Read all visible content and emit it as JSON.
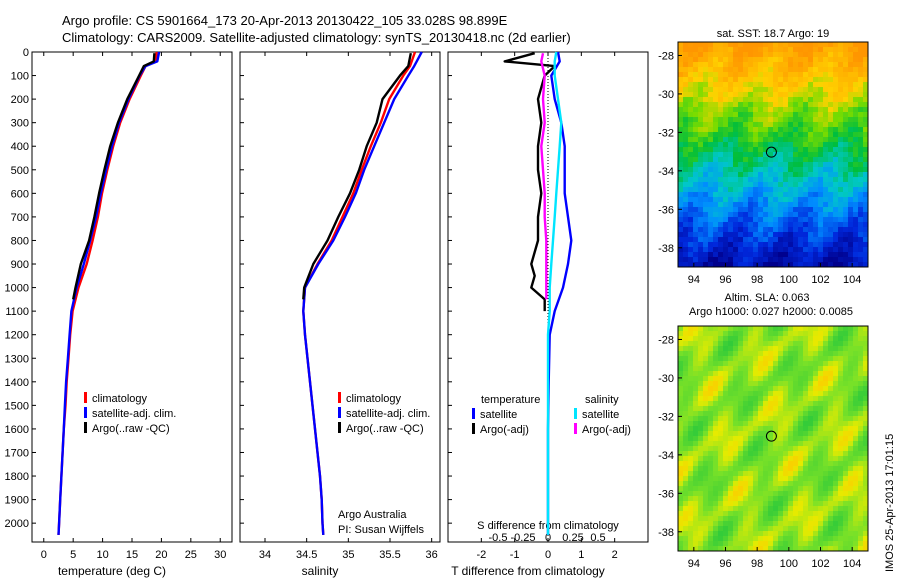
{
  "header": {
    "line1": "Argo profile: CS 5901664_173 20-Apr-2013 20130422_105 33.028S 98.899E",
    "line2": "Climatology: CARS2009. Satellite-adjusted climatology: synTS_20130418.nc (2d earlier)"
  },
  "side_label": "IMOS 25-Apr-2013 17:01:15",
  "chart_data": [
    {
      "type": "line",
      "id": "temperature",
      "xlabel": "temperature (deg C)",
      "ylabel": "",
      "xlim": [
        -2,
        32
      ],
      "ylim": [
        2080,
        0
      ],
      "xticks": [
        0,
        5,
        10,
        15,
        20,
        25,
        30
      ],
      "yticks": [
        0,
        100,
        200,
        300,
        400,
        500,
        600,
        700,
        800,
        900,
        1000,
        1100,
        1200,
        1300,
        1400,
        1500,
        1600,
        1700,
        1800,
        1900,
        2000
      ],
      "grid": false,
      "legend": {
        "position": "lower-center",
        "entries": [
          {
            "label": "climatology",
            "color": "#ff0000"
          },
          {
            "label": "satellite-adj. clim.",
            "color": "#0000ff"
          },
          {
            "label": "Argo(..raw -QC)",
            "color": "#000000"
          }
        ]
      },
      "series": [
        {
          "name": "climatology",
          "color": "#ff0000",
          "depth": [
            0,
            40,
            60,
            100,
            200,
            300,
            400,
            500,
            600,
            700,
            800,
            900,
            1000,
            1100,
            1200,
            1300,
            1400,
            1500,
            1600,
            1700,
            1800,
            1900,
            2000,
            2050
          ],
          "values": [
            19.2,
            19.0,
            17.3,
            16.5,
            14.6,
            13.0,
            11.8,
            10.8,
            9.9,
            9.2,
            8.3,
            7.3,
            5.9,
            4.9,
            4.5,
            4.2,
            3.9,
            3.7,
            3.4,
            3.2,
            3.0,
            2.8,
            2.6,
            2.5
          ]
        },
        {
          "name": "satellite-adj. clim.",
          "color": "#0000ff",
          "depth": [
            0,
            40,
            60,
            100,
            200,
            300,
            400,
            500,
            600,
            700,
            800,
            900,
            1000,
            1100,
            1200,
            1300,
            1400,
            1500,
            1600,
            1700,
            1800,
            1900,
            2000,
            2050
          ],
          "values": [
            19.6,
            19.3,
            17.3,
            16.3,
            14.4,
            12.8,
            11.6,
            10.6,
            9.7,
            8.9,
            7.9,
            6.8,
            5.6,
            4.7,
            4.4,
            4.1,
            3.8,
            3.6,
            3.4,
            3.2,
            3.0,
            2.8,
            2.6,
            2.5
          ]
        },
        {
          "name": "Argo(..raw -QC)",
          "color": "#000000",
          "depth": [
            5,
            40,
            60,
            100,
            200,
            300,
            400,
            500,
            600,
            700,
            800,
            900,
            1000,
            1050
          ],
          "values": [
            18.8,
            18.7,
            17.0,
            16.2,
            14.2,
            12.6,
            11.3,
            10.3,
            9.4,
            8.6,
            7.7,
            6.3,
            5.4,
            5.0
          ]
        }
      ]
    },
    {
      "type": "line",
      "id": "salinity",
      "xlabel": "salinity",
      "ylabel": "",
      "xlim": [
        33.7,
        36.1
      ],
      "ylim": [
        2080,
        0
      ],
      "xticks": [
        34,
        34.5,
        35,
        35.5,
        36
      ],
      "yticks": [],
      "grid": false,
      "legend": {
        "position": "lower-right",
        "entries": [
          {
            "label": "climatology",
            "color": "#ff0000"
          },
          {
            "label": "satellite-adj. clim.",
            "color": "#0000ff"
          },
          {
            "label": "Argo(..raw -QC)",
            "color": "#000000"
          }
        ]
      },
      "annotations": [
        "Argo Australia",
        "PI: Susan Wijffels"
      ],
      "series": [
        {
          "name": "climatology",
          "color": "#ff0000",
          "depth": [
            0,
            40,
            60,
            100,
            200,
            300,
            400,
            500,
            600,
            700,
            800,
            900,
            1000,
            1100,
            1200,
            1300,
            1400,
            1500,
            1600,
            1700,
            1800,
            1900,
            2000,
            2050
          ],
          "values": [
            35.8,
            35.76,
            35.74,
            35.66,
            35.49,
            35.39,
            35.27,
            35.16,
            35.06,
            34.93,
            34.8,
            34.63,
            34.48,
            34.46,
            34.48,
            34.51,
            34.54,
            34.57,
            34.6,
            34.63,
            34.66,
            34.68,
            34.69,
            34.7
          ]
        },
        {
          "name": "satellite-adj. clim.",
          "color": "#0000ff",
          "depth": [
            0,
            40,
            60,
            100,
            200,
            300,
            400,
            500,
            600,
            700,
            800,
            900,
            1000,
            1100,
            1200,
            1300,
            1400,
            1500,
            1600,
            1700,
            1800,
            1900,
            2000,
            2050
          ],
          "values": [
            35.88,
            35.82,
            35.79,
            35.72,
            35.55,
            35.43,
            35.31,
            35.19,
            35.09,
            34.96,
            34.82,
            34.64,
            34.48,
            34.46,
            34.48,
            34.51,
            34.54,
            34.57,
            34.6,
            34.63,
            34.66,
            34.68,
            34.69,
            34.7
          ]
        },
        {
          "name": "Argo(..raw -QC)",
          "color": "#000000",
          "depth": [
            5,
            40,
            60,
            100,
            200,
            300,
            400,
            500,
            600,
            700,
            800,
            900,
            1000,
            1050
          ],
          "values": [
            35.75,
            35.73,
            35.72,
            35.62,
            35.41,
            35.34,
            35.22,
            35.13,
            35.02,
            34.88,
            34.75,
            34.58,
            34.47,
            34.46
          ]
        }
      ]
    },
    {
      "type": "line",
      "id": "differences",
      "xlabel": "T difference from climatology",
      "xlabel_top": "S difference from climatology",
      "xlim": [
        -3,
        3
      ],
      "ylim": [
        2080,
        0
      ],
      "xticks": [
        -2,
        -1,
        0,
        1,
        2
      ],
      "xticks_top": [
        {
          "pos": -1.5,
          "label": "-0.5"
        },
        {
          "pos": -0.75,
          "label": "-0.25"
        },
        {
          "pos": 0,
          "label": "0"
        },
        {
          "pos": 0.75,
          "label": "0.25"
        },
        {
          "pos": 1.5,
          "label": "0.5"
        }
      ],
      "grid": false,
      "legend": {
        "position": "lower-center",
        "headers": [
          "temperature",
          "salinity"
        ],
        "entries": [
          {
            "label": "satellite",
            "color": "#0000ff"
          },
          {
            "label": "Argo(-adj)",
            "color": "#000000"
          },
          {
            "label": "satellite",
            "color": "#00e5ff"
          },
          {
            "label": "Argo(-adj)",
            "color": "#ff00ff"
          }
        ]
      },
      "series": [
        {
          "name": "T satellite",
          "color": "#0000ff",
          "depth": [
            0,
            40,
            100,
            200,
            300,
            400,
            500,
            600,
            700,
            800,
            900,
            1000,
            1100,
            1200,
            1400,
            1600,
            1800,
            2000,
            2050
          ],
          "values": [
            0.3,
            0.35,
            0.1,
            0.2,
            0.4,
            0.5,
            0.5,
            0.5,
            0.6,
            0.7,
            0.6,
            0.45,
            0.2,
            0.05,
            0.02,
            0,
            0,
            0,
            0
          ]
        },
        {
          "name": "T Argo(-adj)",
          "color": "#000000",
          "depth": [
            5,
            40,
            60,
            100,
            200,
            300,
            400,
            500,
            600,
            700,
            800,
            900,
            950,
            1000,
            1050,
            1100
          ],
          "values": [
            -0.4,
            -1.3,
            0.2,
            -0.1,
            -0.3,
            -0.2,
            -0.3,
            -0.3,
            -0.2,
            -0.3,
            -0.3,
            -0.5,
            -0.4,
            -0.5,
            -0.1,
            -0.1
          ]
        },
        {
          "name": "S satellite",
          "color": "#00e5ff",
          "depth": [
            0,
            40,
            100,
            200,
            300,
            400,
            500,
            600,
            700,
            800,
            900,
            1000,
            1100,
            1200,
            1400,
            1600,
            1800,
            2000,
            2050
          ],
          "values": [
            0.25,
            0.2,
            0.2,
            0.3,
            0.4,
            0.35,
            0.3,
            0.25,
            0.2,
            0.15,
            0.1,
            0.05,
            0.05,
            0,
            0,
            0,
            0,
            0,
            0
          ]
        },
        {
          "name": "S Argo(-adj)",
          "color": "#ff00ff",
          "depth": [
            5,
            40,
            100,
            200,
            300,
            400,
            500,
            600,
            700,
            800,
            900,
            1000,
            1050
          ],
          "values": [
            -0.15,
            -0.2,
            -0.1,
            -0.15,
            -0.1,
            -0.2,
            -0.15,
            -0.1,
            -0.1,
            -0.05,
            -0.05,
            -0.05,
            -0.05
          ]
        }
      ]
    },
    {
      "type": "heatmap",
      "id": "sst_map",
      "title": "sat. SST: 18.7 Argo: 19",
      "xlim": [
        93,
        105
      ],
      "ylim": [
        -39,
        -27.3
      ],
      "xticks": [
        94,
        96,
        98,
        100,
        102,
        104
      ],
      "yticks": [
        -28,
        -30,
        -32,
        -34,
        -36,
        -38
      ],
      "marker": {
        "lon": 98.899,
        "lat": -33.028
      }
    },
    {
      "type": "heatmap",
      "id": "sla_map",
      "title": "Altim. SLA: 0.063",
      "subtitle": "Argo h1000: 0.027 h2000: 0.0085",
      "xlim": [
        93,
        105
      ],
      "ylim": [
        -39,
        -27.3
      ],
      "xticks": [
        94,
        96,
        98,
        100,
        102,
        104
      ],
      "yticks": [
        -28,
        -30,
        -32,
        -34,
        -36,
        -38
      ],
      "marker": {
        "lon": 98.899,
        "lat": -33.028
      }
    }
  ]
}
